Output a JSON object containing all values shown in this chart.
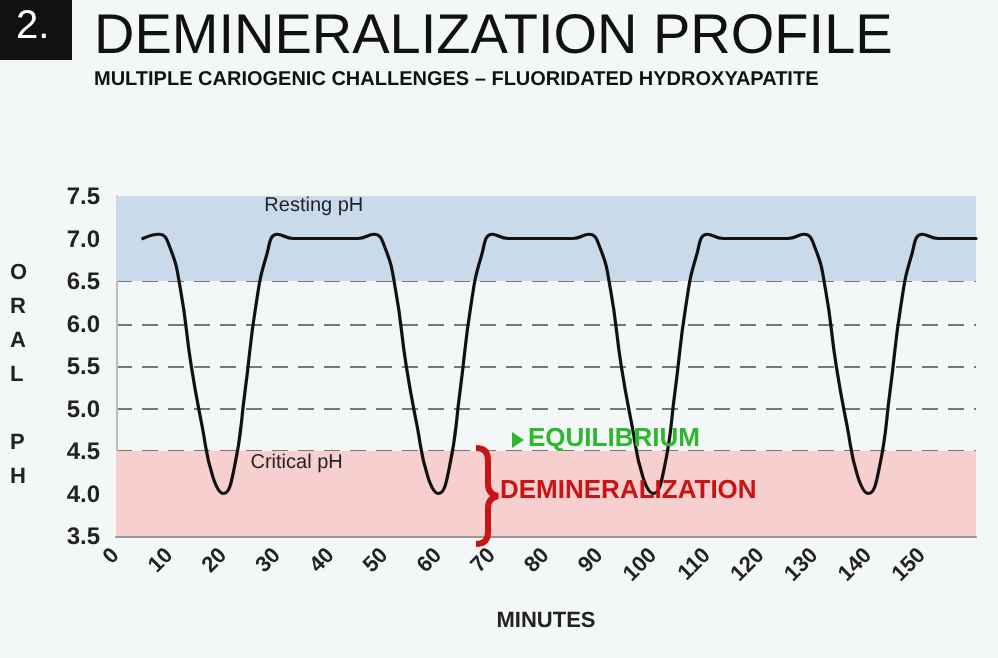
{
  "chart_data": {
    "type": "line",
    "title": "DEMINERALIZATION PROFILE",
    "subtitle": "MULTIPLE CARIOGENIC CHALLENGES – FLUORIDATED HYDROXYAPATITE",
    "xlabel": "MINUTES",
    "ylabel": "ORAL PH",
    "annotations": [
      "2.",
      "EQUILIBRIUM",
      "DEMINERALIZATION"
    ],
    "x": [
      5,
      8,
      10,
      12,
      14,
      16,
      18,
      20,
      22,
      24,
      26,
      28,
      30,
      33,
      45,
      48,
      50,
      52,
      54,
      56,
      58,
      60,
      62,
      64,
      66,
      68,
      70,
      73,
      85,
      88,
      90,
      92,
      94,
      96,
      98,
      100,
      102,
      104,
      106,
      108,
      110,
      113,
      125,
      128,
      130,
      132,
      134,
      136,
      138,
      140,
      142,
      144,
      146,
      148,
      150,
      153,
      160
    ],
    "series": [
      {
        "color": "#111111",
        "values": [
          7.0,
          7.05,
          6.9,
          6.4,
          5.5,
          4.8,
          4.2,
          4.0,
          4.3,
          5.2,
          6.2,
          6.8,
          7.05,
          7.0,
          7.0,
          7.05,
          6.9,
          6.4,
          5.5,
          4.8,
          4.2,
          4.0,
          4.3,
          5.2,
          6.2,
          6.8,
          7.05,
          7.0,
          7.0,
          7.05,
          6.9,
          6.4,
          5.5,
          4.8,
          4.2,
          4.0,
          4.3,
          5.2,
          6.2,
          6.8,
          7.05,
          7.0,
          7.0,
          7.05,
          6.9,
          6.4,
          5.5,
          4.8,
          4.2,
          4.0,
          4.3,
          5.2,
          6.2,
          6.8,
          7.05,
          7.0,
          7.0
        ]
      }
    ],
    "xlim": [
      0,
      160
    ],
    "xticks": [
      0,
      10,
      20,
      30,
      40,
      50,
      60,
      70,
      80,
      90,
      100,
      110,
      120,
      130,
      140,
      150
    ],
    "ylim": [
      3.5,
      7.5
    ],
    "yticks": [
      {
        "value": 3.5,
        "label": "3.5"
      },
      {
        "value": 4,
        "label": "4.0"
      },
      {
        "value": 4.5,
        "label": "4.5"
      },
      {
        "value": 5,
        "label": "5.0"
      },
      {
        "value": 5.5,
        "label": "5.5"
      },
      {
        "value": 6,
        "label": "6.0"
      },
      {
        "value": 6.5,
        "label": "6.5"
      },
      {
        "value": 7,
        "label": "7.0"
      },
      {
        "value": 7.5,
        "label": "7.5"
      }
    ],
    "bands": [
      {
        "axis": "y",
        "from": 6.5,
        "to": 7.5,
        "label": "Resting pH",
        "color": "#c9dbea"
      },
      {
        "axis": "y",
        "from": 3.5,
        "to": 4.5,
        "label": "Critical pH",
        "color": "#f8cfcf"
      }
    ],
    "grid": "y",
    "line_style": "solid",
    "marker": "none"
  }
}
